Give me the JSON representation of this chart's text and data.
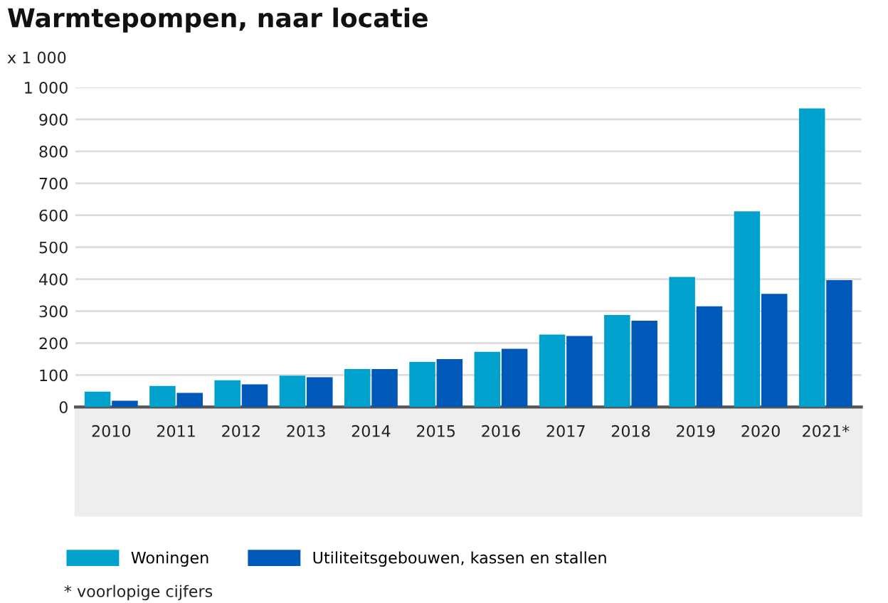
{
  "chart_data": {
    "type": "bar",
    "title": "Warmtepompen, naar locatie",
    "ylabel": "x 1 000",
    "categories": [
      "2010",
      "2011",
      "2012",
      "2013",
      "2014",
      "2015",
      "2016",
      "2017",
      "2018",
      "2019",
      "2020",
      "2021*"
    ],
    "series": [
      {
        "name": "Woningen",
        "color": "#00a1cd",
        "values": [
          48,
          66,
          84,
          98,
          119,
          141,
          173,
          227,
          288,
          407,
          612,
          934
        ]
      },
      {
        "name": "Utiliteitsgebouwen, kassen en stallen",
        "color": "#0058b8",
        "values": [
          20,
          44,
          71,
          93,
          119,
          150,
          182,
          222,
          270,
          315,
          354,
          397
        ]
      }
    ],
    "ylim": [
      0,
      1000
    ],
    "yticks": [
      0,
      100,
      200,
      300,
      400,
      500,
      600,
      700,
      800,
      900,
      {
        "value": 1000,
        "label": "1 000"
      }
    ],
    "grid": "y",
    "legend": "bottom",
    "annotations": [
      "* voorlopige cijfers"
    ]
  }
}
